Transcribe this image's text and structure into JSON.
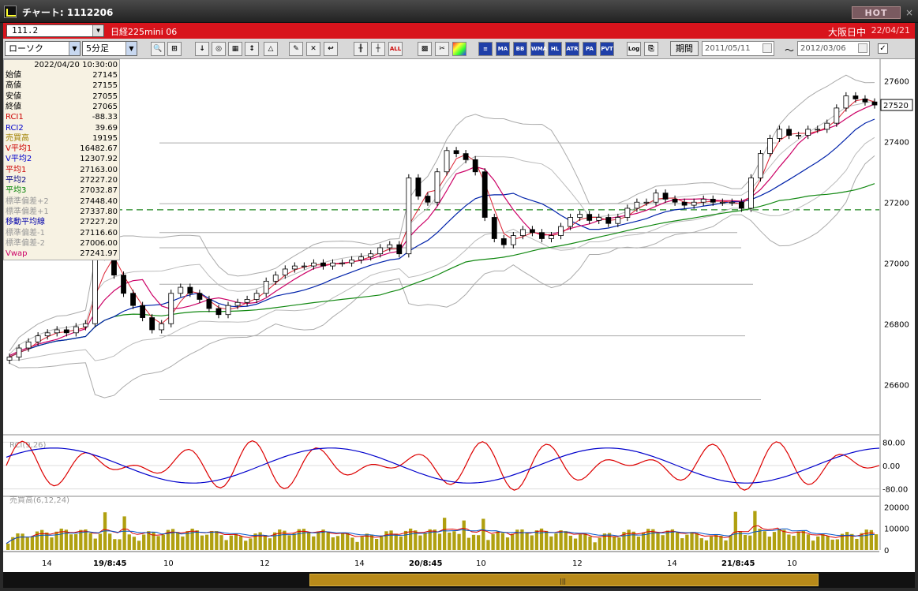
{
  "window": {
    "title": "チャート: 1112206",
    "hot_label": "HOT"
  },
  "infobar": {
    "symbol": "111.2",
    "instrument": "日経225mini 06",
    "market": "大阪日中",
    "date": "22/04/21"
  },
  "toolbar": {
    "chart_type": "ローソク",
    "interval": "5分足",
    "period_label": "期間",
    "date_from": "2011/05/11",
    "date_to": "2012/03/06",
    "tilde": "～",
    "indicator_buttons": [
      "ALL",
      "MA",
      "BB",
      "WMA",
      "HL",
      "ATR",
      "PA",
      "PVT",
      "Log"
    ]
  },
  "data_panel": {
    "datetime": "2022/04/20  10:30:00",
    "rows": [
      {
        "label": "始値",
        "value": "27145",
        "color": "#000000"
      },
      {
        "label": "高値",
        "value": "27155",
        "color": "#000000"
      },
      {
        "label": "安値",
        "value": "27055",
        "color": "#000000"
      },
      {
        "label": "終値",
        "value": "27065",
        "color": "#000000"
      },
      {
        "label": "RCI1",
        "value": "-88.33",
        "color": "#cc0000"
      },
      {
        "label": "RCI2",
        "value": "39.69",
        "color": "#0000cc"
      },
      {
        "label": "売買高",
        "value": "19195",
        "color": "#a08000"
      },
      {
        "label": "V平均1",
        "value": "16482.67",
        "color": "#cc0000"
      },
      {
        "label": "V平均2",
        "value": "12307.92",
        "color": "#0000cc"
      },
      {
        "label": "平均1",
        "value": "27163.00",
        "color": "#cc0000"
      },
      {
        "label": "平均2",
        "value": "27227.20",
        "color": "#000080"
      },
      {
        "label": "平均3",
        "value": "27032.87",
        "color": "#008000"
      },
      {
        "label": "標準偏差+2",
        "value": "27448.40",
        "color": "#999999"
      },
      {
        "label": "標準偏差+1",
        "value": "27337.80",
        "color": "#999999"
      },
      {
        "label": "移動平均線",
        "value": "27227.20",
        "color": "#0000aa"
      },
      {
        "label": "標準偏差-1",
        "value": "27116.60",
        "color": "#999999"
      },
      {
        "label": "標準偏差-2",
        "value": "27006.00",
        "color": "#999999"
      },
      {
        "label": "Vwap",
        "value": "27241.97",
        "color": "#cc0066"
      }
    ]
  },
  "chart_data": [
    {
      "type": "line",
      "name": "price-candlestick",
      "ylim": [
        26450,
        27650
      ],
      "yticks": [
        "27600",
        "27400",
        "27200",
        "27000",
        "26800",
        "26600"
      ],
      "current_price": "27520",
      "xticks": [
        "14",
        "19/8:45",
        "10",
        "12",
        "14",
        "20/8:45",
        "10",
        "12",
        "14",
        "21/8:45",
        "10"
      ],
      "close": [
        26690,
        26720,
        26740,
        26760,
        26770,
        26780,
        26770,
        26790,
        26800,
        27080,
        27020,
        26960,
        26900,
        26860,
        26820,
        26780,
        26800,
        26900,
        26920,
        26900,
        26880,
        26850,
        26830,
        26860,
        26870,
        26880,
        26900,
        26940,
        26960,
        26980,
        26990,
        26990,
        27000,
        26990,
        27000,
        27000,
        27010,
        27020,
        27030,
        27050,
        27060,
        27030,
        27280,
        27220,
        27200,
        27300,
        27370,
        27360,
        27340,
        27300,
        27150,
        27080,
        27060,
        27090,
        27110,
        27100,
        27080,
        27090,
        27120,
        27150,
        27160,
        27140,
        27150,
        27130,
        27150,
        27180,
        27200,
        27200,
        27230,
        27210,
        27200,
        27190,
        27200,
        27210,
        27200,
        27200,
        27200,
        27180,
        27280,
        27360,
        27410,
        27440,
        27420,
        27420,
        27440,
        27440,
        27460,
        27510,
        27550,
        27540,
        27530,
        27520
      ]
    },
    {
      "type": "line",
      "name": "RCI",
      "label": "RCI(9,26)",
      "ylim": [
        -100,
        100
      ],
      "yticks": [
        "80.00",
        "0.00",
        "-80.00"
      ]
    },
    {
      "type": "bar",
      "name": "volume",
      "label": "売買高(6,12,24)",
      "ylim": [
        0,
        22000
      ],
      "yticks": [
        "20000",
        "10000",
        "0"
      ]
    }
  ],
  "colors": {
    "infobar": "#d8141c",
    "ma_short": "#cc0033",
    "ma_mid": "#0022aa",
    "ma_long": "#118811",
    "bollinger": "#aaaaaa",
    "volume": "#b0a010"
  }
}
